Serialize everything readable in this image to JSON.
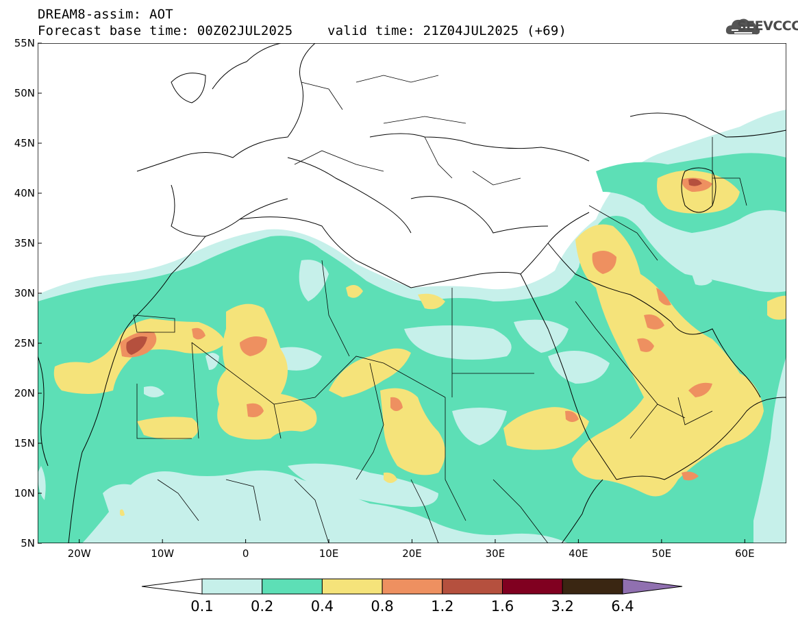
{
  "header": {
    "line1": "DREAM8-assim: AOT",
    "line2": "Forecast base time: 00Z02JUL2025",
    "valid": "valid time: 21Z04JUL2025 (+69)"
  },
  "logo": {
    "text": "SEEVCCC",
    "icon": "cloud-logo-icon"
  },
  "map": {
    "type": "contour-map",
    "variable": "AOT",
    "lon_range": [
      -25,
      65
    ],
    "lat_range": [
      5,
      55
    ],
    "lat_ticks": [
      "5N",
      "10N",
      "15N",
      "20N",
      "25N",
      "30N",
      "35N",
      "40N",
      "45N",
      "50N",
      "55N"
    ],
    "lon_ticks": [
      "20W",
      "10W",
      "0",
      "10E",
      "20E",
      "30E",
      "40E",
      "50E",
      "60E"
    ]
  },
  "legend": {
    "levels": [
      "0.1",
      "0.2",
      "0.4",
      "0.8",
      "1.2",
      "1.6",
      "3.2",
      "6.4"
    ],
    "colors": [
      "#c6f0ea",
      "#5ddfb6",
      "#f5e37a",
      "#ee9060",
      "#b5503e",
      "#800020",
      "#3a2612",
      "#9070b0"
    ]
  }
}
